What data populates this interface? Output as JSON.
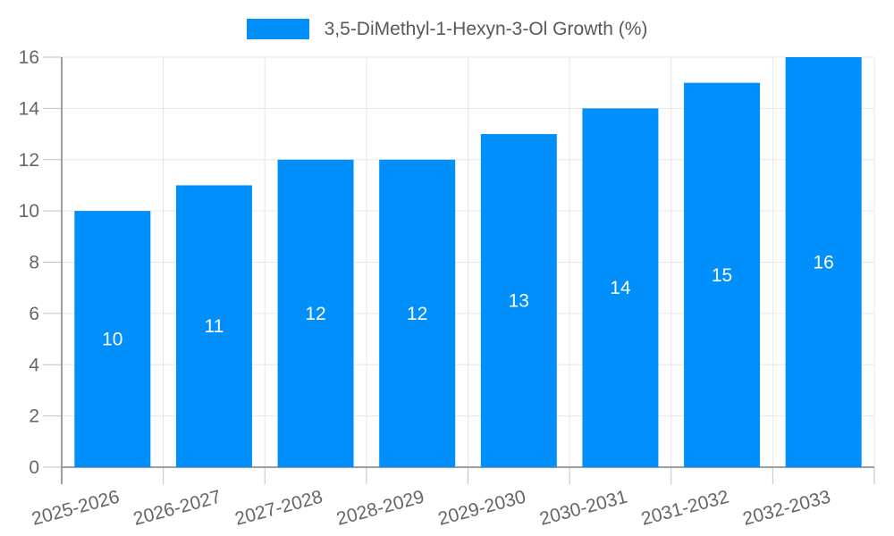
{
  "chart_data": {
    "type": "bar",
    "title": "3,5-DiMethyl-1-Hexyn-3-Ol Growth (%)",
    "categories": [
      "2025-2026",
      "2026-2027",
      "2027-2028",
      "2028-2029",
      "2029-2030",
      "2030-2031",
      "2031-2032",
      "2032-2033"
    ],
    "values": [
      10,
      11,
      12,
      12,
      13,
      14,
      15,
      16
    ],
    "bar_labels": [
      "10",
      "11",
      "12",
      "12",
      "13",
      "14",
      "15",
      "16"
    ],
    "xlabel": "",
    "ylabel": "",
    "ylim": [
      0,
      16
    ],
    "ytick_step": 2,
    "ytick_labels": [
      "0",
      "2",
      "4",
      "6",
      "8",
      "10",
      "12",
      "14",
      "16"
    ],
    "grid": "horizontal-and-vertical",
    "legend_position": "top-center",
    "x_label_rotation_deg": -15,
    "colors": {
      "bar": "#008ffb",
      "bar_label": "#ffffff",
      "grid": "#e6e6e6",
      "axis_line": "#9e9e9e",
      "tick_mark": "#c2c2c2",
      "axis_label": "#666666",
      "legend_text": "#58595b",
      "background": "#ffffff"
    }
  }
}
